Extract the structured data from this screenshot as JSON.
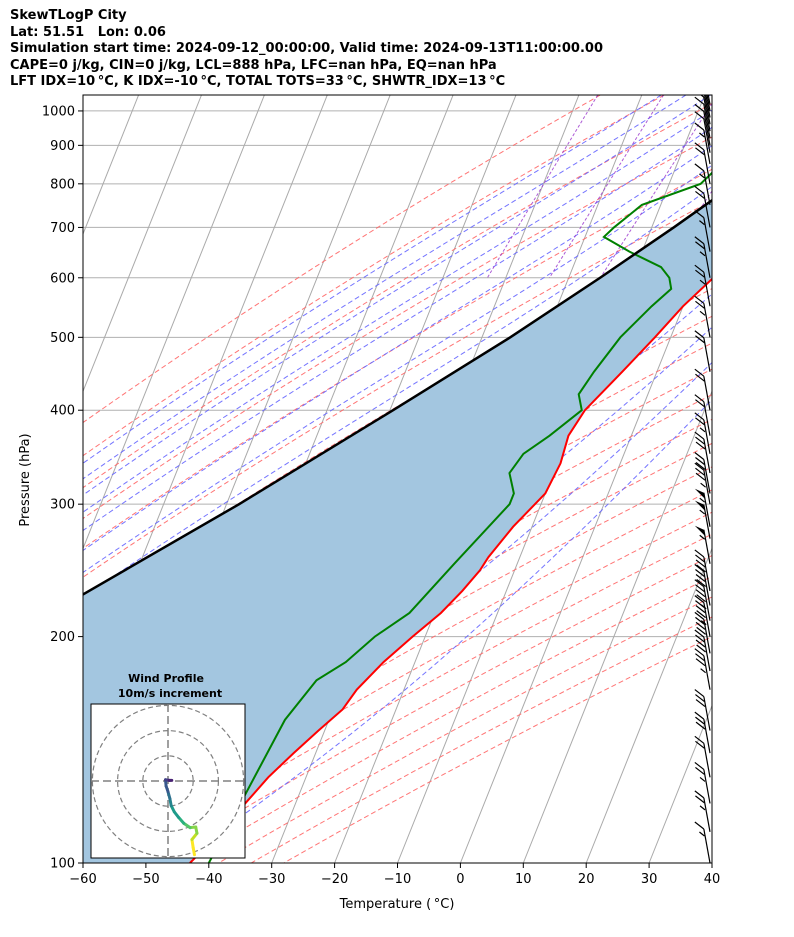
{
  "header": {
    "line1": "SkewTLogP City",
    "line2": "Lat: 51.51   Lon: 0.06",
    "line3": "Simulation start time: 2024-09-12_00:00:00, Valid time: 2024-09-13T11:00:00.00",
    "line4": "CAPE=0 j/kg, CIN=0 j/kg, LCL=888 hPa, LFC=nan hPa, EQ=nan hPa",
    "line5": "LFT IDX=10 °C, K IDX=-10 °C, TOTAL TOTS=33 °C, SHWTR_IDX=13 °C"
  },
  "chart_data": {
    "type": "skewt",
    "xlabel": "Temperature ( °C)",
    "ylabel": "Pressure (hPa)",
    "xlim": [
      -60,
      40
    ],
    "ylim": [
      1050,
      100
    ],
    "x_ticks": [
      -60,
      -50,
      -40,
      -30,
      -20,
      -10,
      0,
      10,
      20,
      30,
      40
    ],
    "x_tick_labels": [
      "−60",
      "−50",
      "−40",
      "−30",
      "−20",
      "−10",
      "0",
      "10",
      "20",
      "30",
      "40"
    ],
    "y_ticks": [
      1000,
      900,
      800,
      700,
      600,
      500,
      400,
      300,
      200,
      100
    ],
    "y_scale": "log",
    "grid": true,
    "colors": {
      "temperature": "#ff0000",
      "dewpoint": "#008000",
      "parcel": "#000000",
      "cape_fill": "#a3c6e0",
      "dry_adiabats": "#ff6666",
      "moist_adiabats": "#6666ff",
      "mixing_ratio": "#9933cc",
      "isotherms": "#aaaaaa"
    },
    "temperature_profile": {
      "pressure": [
        1020,
        960,
        900,
        850,
        800,
        750,
        700,
        650,
        600,
        550,
        500,
        450,
        400,
        370,
        340,
        310,
        280,
        255,
        245,
        230,
        215,
        200,
        185,
        170,
        160,
        150,
        140,
        130,
        120,
        110,
        100
      ],
      "temperature": [
        13.5,
        9.5,
        6.5,
        6.3,
        6.3,
        6.5,
        6.5,
        5.5,
        3.0,
        0.0,
        -2.5,
        -5.5,
        -9.0,
        -10.0,
        -9.5,
        -10.0,
        -13.0,
        -15.0,
        -15.5,
        -17.0,
        -19.0,
        -22.0,
        -25.0,
        -27.5,
        -28.5,
        -31.0,
        -33.5,
        -36.0,
        -38.0,
        -40.0,
        -43.0
      ]
    },
    "dewpoint_profile": {
      "pressure": [
        1020,
        960,
        900,
        880,
        850,
        800,
        750,
        700,
        680,
        650,
        620,
        600,
        580,
        550,
        500,
        450,
        420,
        400,
        370,
        350,
        330,
        310,
        300,
        250,
        215,
        200,
        185,
        175,
        155,
        100
      ],
      "dewpoint": [
        4.5,
        5.5,
        6.0,
        -2.0,
        -3.0,
        -5.0,
        -13.0,
        -16.0,
        -17.0,
        -12.0,
        -6.0,
        -4.0,
        -3.0,
        -5.0,
        -8.0,
        -10.0,
        -11.0,
        -9.5,
        -13.0,
        -16.0,
        -17.0,
        -15.0,
        -15.0,
        -20.0,
        -24.0,
        -28.0,
        -31.0,
        -34.5,
        -37.0,
        -40.0
      ]
    },
    "parcel_profile": {
      "pressure": [
        1020,
        960,
        888,
        800,
        700,
        600,
        500,
        400,
        300,
        200,
        150,
        100
      ],
      "temperature": [
        13.5,
        9.5,
        5.5,
        0.5,
        -6.5,
        -15.0,
        -25.5,
        -39.5,
        -58.0,
        -86.0,
        -103.0,
        -125.0
      ]
    },
    "wind_barbs": {
      "pressure": [
        1020,
        1000,
        980,
        960,
        940,
        920,
        900,
        880,
        850,
        800,
        750,
        700,
        650,
        600,
        550,
        500,
        450,
        400,
        370,
        350,
        330,
        310,
        300,
        280,
        270,
        250,
        230,
        220,
        210,
        200,
        190,
        180,
        170,
        150,
        140,
        130,
        120,
        110,
        100
      ],
      "speed_kt": [
        5,
        10,
        10,
        10,
        10,
        10,
        10,
        10,
        15,
        20,
        15,
        20,
        15,
        25,
        25,
        25,
        20,
        20,
        20,
        25,
        30,
        30,
        35,
        55,
        55,
        55,
        40,
        40,
        45,
        45,
        40,
        40,
        35,
        30,
        30,
        20,
        25,
        25,
        15
      ]
    },
    "hodograph": {
      "title_line1": "Wind Profile",
      "title_line2": "10m/s increment",
      "u": [
        4.2,
        4.0,
        3.8,
        4.6,
        4.4,
        3.5,
        2.5,
        1.7,
        1.0,
        0.5,
        0.3,
        0.0,
        -0.3,
        -0.4,
        0.2,
        0.6
      ],
      "v": [
        -11.7,
        -10.6,
        -9.3,
        -8.3,
        -7.3,
        -7.4,
        -6.7,
        -5.8,
        -4.9,
        -3.9,
        -2.8,
        -1.7,
        -0.8,
        0.2,
        0.1,
        0.1
      ]
    }
  }
}
